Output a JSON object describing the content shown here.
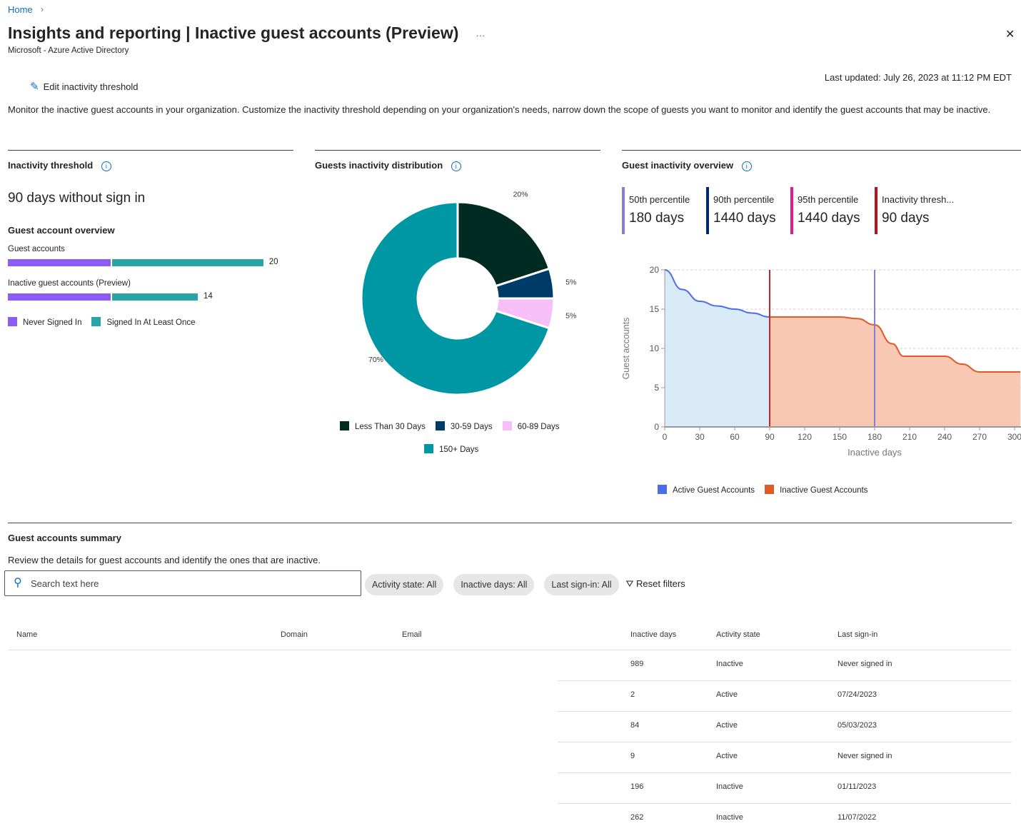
{
  "breadcrumb": {
    "home": "Home"
  },
  "header": {
    "title": "Insights and reporting | Inactive guest accounts (Preview)",
    "subtitle": "Microsoft - Azure Active Directory",
    "more": "···",
    "close": "✕"
  },
  "toolbar": {
    "edit_label": "Edit inactivity threshold",
    "last_updated": "Last updated: July 26, 2023 at 11:12 PM EDT"
  },
  "description": "Monitor the inactive guest accounts in your organization. Customize the inactivity threshold depending on your organization's needs, narrow down the scope of guests you want to monitor and identify the guest accounts that may be inactive.",
  "threshold_panel": {
    "title": "Inactivity threshold",
    "value": "90 days without sign in",
    "overview_title": "Guest account overview",
    "bars": [
      {
        "label": "Guest accounts",
        "never": 7,
        "once": 13,
        "total": "20"
      },
      {
        "label": "Inactive guest accounts (Preview)",
        "never": 7,
        "once": 7,
        "total": "14"
      }
    ],
    "legend": [
      {
        "label": "Never Signed In",
        "color": "#8b5cf6"
      },
      {
        "label": "Signed In At Least Once",
        "color": "#2ba4a8"
      }
    ]
  },
  "distribution_panel": {
    "title": "Guests inactivity distribution"
  },
  "overview_panel": {
    "title": "Guest inactivity overview",
    "percentiles": [
      {
        "label": "50th percentile",
        "value": "180 days",
        "color": "#8a7cd6"
      },
      {
        "label": "90th percentile",
        "value": "1440 days",
        "color": "#00247d"
      },
      {
        "label": "95th percentile",
        "value": "1440 days",
        "color": "#e3198b"
      },
      {
        "label": "Inactivity thresh...",
        "value": "90 days",
        "color": "#b4141b"
      }
    ]
  },
  "chart_data": [
    {
      "type": "pie",
      "donut": true,
      "slices": [
        {
          "name": "Less Than 30 Days",
          "value": 20,
          "label": "20%",
          "color": "#002b22"
        },
        {
          "name": "30-59 Days",
          "value": 5,
          "label": "5%",
          "color": "#003a66"
        },
        {
          "name": "60-89 Days",
          "value": 5,
          "label": "5%",
          "color": "#f7bff7"
        },
        {
          "name": "150+ Days",
          "value": 70,
          "label": "70%",
          "color": "#0097a5"
        }
      ]
    },
    {
      "type": "area",
      "xlabel": "Inactive days",
      "ylabel": "Guest accounts",
      "xlim": [
        0,
        300
      ],
      "ylim": [
        0,
        20
      ],
      "xticks": [
        "0",
        "30",
        "60",
        "90",
        "120",
        "150",
        "180",
        "210",
        "240",
        "270",
        "300"
      ],
      "yticks": [
        "0",
        "5",
        "10",
        "15",
        "20"
      ],
      "grid": true,
      "legend_placement": "bottom",
      "series": [
        {
          "name": "Active Guest Accounts",
          "color": "#4f6bed",
          "fill": "#d9ebf7",
          "x": [
            0,
            15,
            30,
            45,
            60,
            75,
            90
          ],
          "y": [
            20,
            17.5,
            16,
            15.4,
            15,
            14.5,
            14
          ]
        },
        {
          "name": "Inactive Guest Accounts",
          "color": "#e05a24",
          "fill": "#f9c8b4",
          "x": [
            90,
            120,
            150,
            165,
            180,
            195,
            205,
            220,
            240,
            255,
            270,
            290,
            305
          ],
          "y": [
            14,
            14,
            14,
            13.8,
            13,
            10.6,
            9,
            9,
            9,
            8,
            7,
            7,
            7
          ]
        }
      ],
      "vlines": [
        {
          "x": 90,
          "color": "#c4262e"
        },
        {
          "x": 180,
          "color": "#8a7cd6"
        }
      ]
    }
  ],
  "summary": {
    "title": "Guest accounts summary",
    "description": "Review the details for guest accounts and identify the ones that are inactive.",
    "search_placeholder": "Search text here",
    "filters": [
      "Activity state: All",
      "Inactive days: All",
      "Last sign-in: All"
    ],
    "reset": "Reset filters",
    "columns": [
      "Name",
      "Domain",
      "Email",
      "Inactive days",
      "Activity state",
      "Last sign-in"
    ],
    "rows": [
      [
        "989",
        "Inactive",
        "Never signed in"
      ],
      [
        "2",
        "Active",
        "07/24/2023"
      ],
      [
        "84",
        "Active",
        "05/03/2023"
      ],
      [
        "9",
        "Active",
        "Never signed in"
      ],
      [
        "196",
        "Inactive",
        "01/11/2023"
      ],
      [
        "262",
        "Inactive",
        "11/07/2022"
      ]
    ]
  }
}
